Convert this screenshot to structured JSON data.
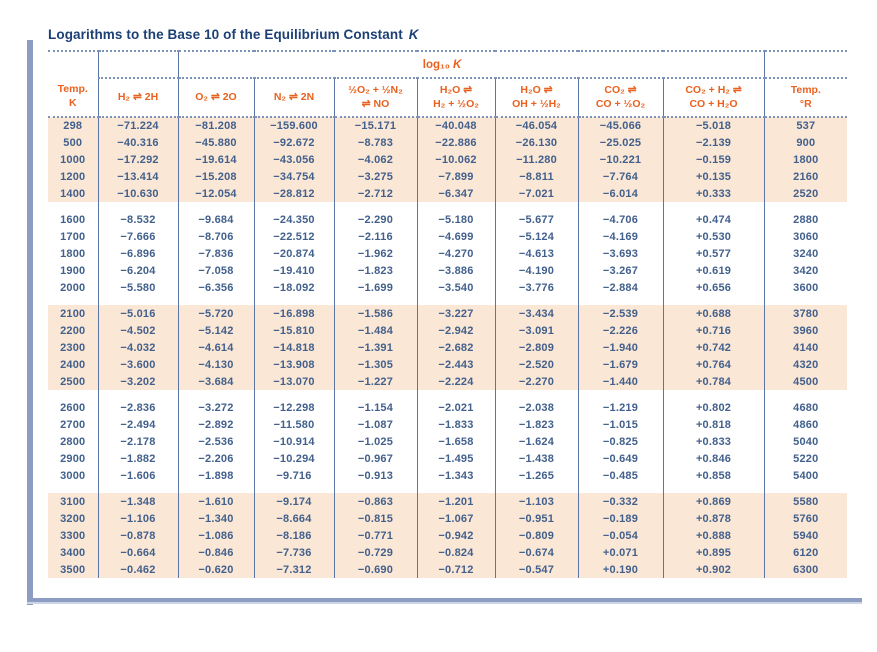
{
  "title": {
    "main": "Logarithms to the Base 10 of the Equilibrium Constant",
    "k": "K"
  },
  "table": {
    "log_header": {
      "prefix": "log₁₀",
      "k": "K"
    },
    "columns": [
      "Temp.\nK",
      "H₂ ⇌ 2H",
      "O₂ ⇌ 2O",
      "N₂ ⇌ 2N",
      "½O₂ + ½N₂\n⇌ NO",
      "H₂O ⇌\nH₂ + ½O₂",
      "H₂O ⇌\nOH + ½H₂",
      "CO₂ ⇌\nCO + ½O₂",
      "CO₂ + H₂ ⇌\nCO + H₂O",
      "Temp.\n°R"
    ],
    "groups": [
      {
        "rows": [
          [
            "298",
            "−71.224",
            "−81.208",
            "−159.600",
            "−15.171",
            "−40.048",
            "−46.054",
            "−45.066",
            "−5.018",
            "537"
          ],
          [
            "500",
            "−40.316",
            "−45.880",
            "−92.672",
            "−8.783",
            "−22.886",
            "−26.130",
            "−25.025",
            "−2.139",
            "900"
          ],
          [
            "1000",
            "−17.292",
            "−19.614",
            "−43.056",
            "−4.062",
            "−10.062",
            "−11.280",
            "−10.221",
            "−0.159",
            "1800"
          ],
          [
            "1200",
            "−13.414",
            "−15.208",
            "−34.754",
            "−3.275",
            "−7.899",
            "−8.811",
            "−7.764",
            "+0.135",
            "2160"
          ],
          [
            "1400",
            "−10.630",
            "−12.054",
            "−28.812",
            "−2.712",
            "−6.347",
            "−7.021",
            "−6.014",
            "+0.333",
            "2520"
          ]
        ]
      },
      {
        "rows": [
          [
            "1600",
            "−8.532",
            "−9.684",
            "−24.350",
            "−2.290",
            "−5.180",
            "−5.677",
            "−4.706",
            "+0.474",
            "2880"
          ],
          [
            "1700",
            "−7.666",
            "−8.706",
            "−22.512",
            "−2.116",
            "−4.699",
            "−5.124",
            "−4.169",
            "+0.530",
            "3060"
          ],
          [
            "1800",
            "−6.896",
            "−7.836",
            "−20.874",
            "−1.962",
            "−4.270",
            "−4.613",
            "−3.693",
            "+0.577",
            "3240"
          ],
          [
            "1900",
            "−6.204",
            "−7.058",
            "−19.410",
            "−1.823",
            "−3.886",
            "−4.190",
            "−3.267",
            "+0.619",
            "3420"
          ],
          [
            "2000",
            "−5.580",
            "−6.356",
            "−18.092",
            "−1.699",
            "−3.540",
            "−3.776",
            "−2.884",
            "+0.656",
            "3600"
          ]
        ]
      },
      {
        "rows": [
          [
            "2100",
            "−5.016",
            "−5.720",
            "−16.898",
            "−1.586",
            "−3.227",
            "−3.434",
            "−2.539",
            "+0.688",
            "3780"
          ],
          [
            "2200",
            "−4.502",
            "−5.142",
            "−15.810",
            "−1.484",
            "−2.942",
            "−3.091",
            "−2.226",
            "+0.716",
            "3960"
          ],
          [
            "2300",
            "−4.032",
            "−4.614",
            "−14.818",
            "−1.391",
            "−2.682",
            "−2.809",
            "−1.940",
            "+0.742",
            "4140"
          ],
          [
            "2400",
            "−3.600",
            "−4.130",
            "−13.908",
            "−1.305",
            "−2.443",
            "−2.520",
            "−1.679",
            "+0.764",
            "4320"
          ],
          [
            "2500",
            "−3.202",
            "−3.684",
            "−13.070",
            "−1.227",
            "−2.224",
            "−2.270",
            "−1.440",
            "+0.784",
            "4500"
          ]
        ]
      },
      {
        "rows": [
          [
            "2600",
            "−2.836",
            "−3.272",
            "−12.298",
            "−1.154",
            "−2.021",
            "−2.038",
            "−1.219",
            "+0.802",
            "4680"
          ],
          [
            "2700",
            "−2.494",
            "−2.892",
            "−11.580",
            "−1.087",
            "−1.833",
            "−1.823",
            "−1.015",
            "+0.818",
            "4860"
          ],
          [
            "2800",
            "−2.178",
            "−2.536",
            "−10.914",
            "−1.025",
            "−1.658",
            "−1.624",
            "−0.825",
            "+0.833",
            "5040"
          ],
          [
            "2900",
            "−1.882",
            "−2.206",
            "−10.294",
            "−0.967",
            "−1.495",
            "−1.438",
            "−0.649",
            "+0.846",
            "5220"
          ],
          [
            "3000",
            "−1.606",
            "−1.898",
            "−9.716",
            "−0.913",
            "−1.343",
            "−1.265",
            "−0.485",
            "+0.858",
            "5400"
          ]
        ]
      },
      {
        "rows": [
          [
            "3100",
            "−1.348",
            "−1.610",
            "−9.174",
            "−0.863",
            "−1.201",
            "−1.103",
            "−0.332",
            "+0.869",
            "5580"
          ],
          [
            "3200",
            "−1.106",
            "−1.340",
            "−8.664",
            "−0.815",
            "−1.067",
            "−0.951",
            "−0.189",
            "+0.878",
            "5760"
          ],
          [
            "3300",
            "−0.878",
            "−1.086",
            "−8.186",
            "−0.771",
            "−0.942",
            "−0.809",
            "−0.054",
            "+0.888",
            "5940"
          ],
          [
            "3400",
            "−0.664",
            "−0.846",
            "−7.736",
            "−0.729",
            "−0.824",
            "−0.674",
            "+0.071",
            "+0.895",
            "6120"
          ],
          [
            "3500",
            "−0.462",
            "−0.620",
            "−7.312",
            "−0.690",
            "−0.712",
            "−0.547",
            "+0.190",
            "+0.902",
            "6300"
          ]
        ]
      }
    ]
  },
  "colors": {
    "title_navy": "#1c4076",
    "header_orange": "#e8611f",
    "data_slate": "#42608c",
    "band_peach": "#fbe7d6",
    "rule_blue": "#5b76a4",
    "dotted_blue": "#7d92b8",
    "frame_bar": "#8c9cc3"
  }
}
